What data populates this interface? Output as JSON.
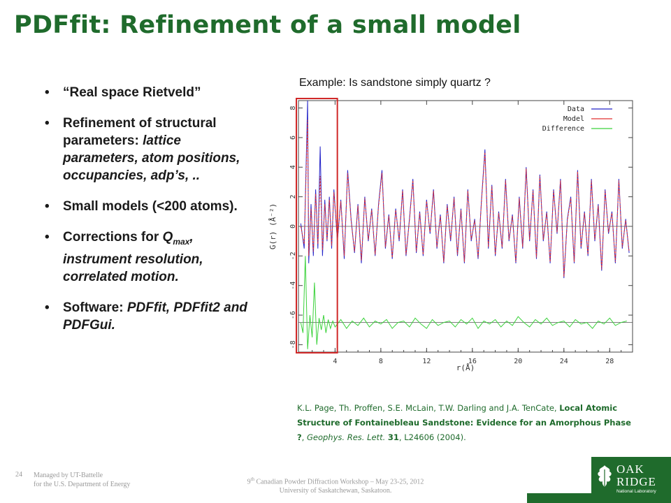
{
  "title": "PDFfit: Refinement of a small model",
  "bullets": [
    {
      "parts": [
        {
          "t": "“Real space Rietveld”",
          "i": false
        }
      ]
    },
    {
      "parts": [
        {
          "t": "Refinement of structural parameters: ",
          "i": false
        },
        {
          "t": "lattice parameters, atom positions, occupancies, adp’s, ..",
          "i": true
        }
      ]
    },
    {
      "parts": [
        {
          "t": "Small models (<200 atoms).",
          "i": false
        }
      ]
    },
    {
      "parts": [
        {
          "t": "Corrections for ",
          "i": false
        },
        {
          "t": "Q",
          "i": true
        },
        {
          "t": "max",
          "i": true,
          "sub": true
        },
        {
          "t": ", instrument resolution, correlated motion.",
          "i": true
        }
      ]
    },
    {
      "parts": [
        {
          "t": "Software: ",
          "i": false
        },
        {
          "t": "PDFfit, PDFfit2 and PDFGui.",
          "i": true
        }
      ]
    }
  ],
  "example_text": "Example: Is sandstone simply quartz ?",
  "reference": {
    "authors": "K.L. Page, Th. Proffen, S.E. McLain, T.W. Darling and J.A. TenCate, ",
    "paper_title": "Local Atomic Structure of Fontainebleau Sandstone: Evidence for an Amorphous Phase ?",
    "journal": "Geophys. Res. Lett.",
    "volume": "31",
    "pages_year": ", L24606 (2004)."
  },
  "footer": {
    "slide_number": "24",
    "managed_line1": "Managed by UT-Battelle",
    "managed_line2": "for the U.S. Department of Energy",
    "workshop_num": "9",
    "workshop_sup": "th",
    "workshop_line1": " Canadian Powder Diffraction Workshop – May 23-25, 2012",
    "workshop_line2": "University of Saskatchewan, Saskatoon."
  },
  "logo": {
    "line1": "OAK",
    "line2": "RIDGE",
    "line3": "National Laboratory"
  },
  "chart_data": {
    "type": "line",
    "xlabel": "r(Å)",
    "ylabel": "G(r) (Å⁻²)",
    "xlim": [
      0.8,
      30
    ],
    "ylim": [
      -8.5,
      8.5
    ],
    "xticks": [
      4,
      8,
      12,
      16,
      20,
      24,
      28
    ],
    "yticks": [
      -8,
      -6,
      -4,
      -2,
      0,
      2,
      4,
      6,
      8
    ],
    "legend_position": "top-right",
    "highlight_box_x": [
      0.8,
      4.2
    ],
    "series": [
      {
        "name": "Data",
        "color": "#2323c8",
        "x": [
          1.0,
          1.3,
          1.6,
          1.7,
          1.9,
          2.1,
          2.3,
          2.5,
          2.7,
          2.9,
          3.1,
          3.3,
          3.5,
          3.7,
          3.9,
          4.2,
          4.5,
          4.8,
          5.1,
          5.4,
          5.7,
          6.0,
          6.3,
          6.6,
          6.9,
          7.2,
          7.5,
          7.8,
          8.1,
          8.4,
          8.7,
          9.0,
          9.3,
          9.6,
          9.9,
          10.2,
          10.5,
          10.8,
          11.1,
          11.4,
          11.7,
          12.0,
          12.3,
          12.6,
          12.9,
          13.2,
          13.5,
          13.8,
          14.1,
          14.4,
          14.7,
          15.0,
          15.3,
          15.6,
          15.9,
          16.2,
          16.5,
          16.8,
          17.1,
          17.4,
          17.7,
          18.0,
          18.3,
          18.6,
          18.9,
          19.2,
          19.5,
          19.8,
          20.1,
          20.4,
          20.7,
          21.0,
          21.3,
          21.6,
          21.9,
          22.2,
          22.5,
          22.8,
          23.1,
          23.4,
          23.7,
          24.0,
          24.3,
          24.6,
          24.9,
          25.2,
          25.5,
          25.8,
          26.1,
          26.4,
          26.7,
          27.0,
          27.3,
          27.6,
          27.9,
          28.2,
          28.5,
          28.8,
          29.1,
          29.4,
          29.7
        ],
        "y": [
          0.2,
          -1.5,
          8.5,
          -2.5,
          1.5,
          -2.0,
          2.5,
          -1.5,
          5.4,
          -2.0,
          1.8,
          -1.0,
          2.0,
          -1.5,
          2.5,
          -1.0,
          1.8,
          -2.2,
          3.8,
          0.5,
          -1.8,
          1.5,
          -2.5,
          2.0,
          -1.0,
          1.2,
          -2.0,
          1.5,
          3.8,
          -1.5,
          0.8,
          -2.2,
          1.2,
          -1.0,
          2.5,
          -2.0,
          0.5,
          3.2,
          -1.8,
          1.0,
          -2.0,
          1.8,
          -0.5,
          2.5,
          -1.5,
          0.8,
          -2.5,
          1.5,
          -1.0,
          2.0,
          -2.0,
          1.2,
          -2.5,
          2.5,
          -1.0,
          0.5,
          -2.2,
          1.8,
          5.2,
          -1.5,
          2.8,
          -2.0,
          1.0,
          -1.5,
          3.2,
          -1.0,
          0.8,
          -2.5,
          2.0,
          -1.5,
          4.0,
          -1.0,
          2.5,
          -2.2,
          3.5,
          -1.0,
          1.0,
          -2.5,
          2.5,
          -0.5,
          3.2,
          -3.5,
          0.5,
          2.0,
          -2.5,
          3.8,
          -1.5,
          1.0,
          -2.0,
          3.2,
          -1.0,
          1.5,
          -3.0,
          2.5,
          -0.5,
          1.0,
          -2.5,
          3.2,
          -1.5,
          0.5,
          -1.8
        ]
      },
      {
        "name": "Model",
        "color": "#e03232",
        "x": [
          1.0,
          1.3,
          1.6,
          1.7,
          1.9,
          2.1,
          2.3,
          2.5,
          2.7,
          2.9,
          3.1,
          3.3,
          3.5,
          3.7,
          3.9,
          4.2,
          4.5,
          4.8,
          5.1,
          5.4,
          5.7,
          6.0,
          6.3,
          6.6,
          6.9,
          7.2,
          7.5,
          7.8,
          8.1,
          8.4,
          8.7,
          9.0,
          9.3,
          9.6,
          9.9,
          10.2,
          10.5,
          10.8,
          11.1,
          11.4,
          11.7,
          12.0,
          12.3,
          12.6,
          12.9,
          13.2,
          13.5,
          13.8,
          14.1,
          14.4,
          14.7,
          15.0,
          15.3,
          15.6,
          15.9,
          16.2,
          16.5,
          16.8,
          17.1,
          17.4,
          17.7,
          18.0,
          18.3,
          18.6,
          18.9,
          19.2,
          19.5,
          19.8,
          20.1,
          20.4,
          20.7,
          21.0,
          21.3,
          21.6,
          21.9,
          22.2,
          22.5,
          22.8,
          23.1,
          23.4,
          23.7,
          24.0,
          24.3,
          24.6,
          24.9,
          25.2,
          25.5,
          25.8,
          26.1,
          26.4,
          26.7,
          27.0,
          27.3,
          27.6,
          27.9,
          28.2,
          28.5,
          28.8,
          29.1,
          29.4,
          29.7
        ],
        "y": [
          0.0,
          -1.2,
          7.2,
          -2.0,
          1.2,
          -1.7,
          2.2,
          -1.2,
          3.4,
          -1.6,
          1.5,
          -0.9,
          1.8,
          -1.3,
          2.3,
          -0.9,
          1.7,
          -2.0,
          3.6,
          0.4,
          -1.7,
          1.4,
          -2.3,
          1.9,
          -0.9,
          1.1,
          -1.9,
          1.4,
          3.6,
          -1.4,
          0.7,
          -2.1,
          1.1,
          -0.9,
          2.4,
          -1.9,
          0.4,
          3.1,
          -1.7,
          0.9,
          -1.9,
          1.7,
          -0.4,
          2.4,
          -1.4,
          0.7,
          -2.4,
          1.4,
          -0.9,
          1.9,
          -1.9,
          1.1,
          -2.4,
          2.4,
          -0.9,
          0.4,
          -2.1,
          1.7,
          5.0,
          -1.4,
          2.7,
          -1.9,
          0.9,
          -1.4,
          3.1,
          -0.9,
          0.7,
          -2.4,
          1.9,
          -1.4,
          3.9,
          -0.9,
          2.4,
          -2.1,
          3.4,
          -0.9,
          0.9,
          -2.4,
          2.4,
          -0.4,
          3.1,
          -3.4,
          0.4,
          1.9,
          -2.4,
          3.7,
          -1.4,
          0.9,
          -1.9,
          3.1,
          -0.9,
          1.4,
          -2.9,
          2.4,
          -0.4,
          0.9,
          -2.4,
          3.1,
          -1.4,
          0.4,
          -1.7
        ]
      },
      {
        "name": "Difference",
        "color": "#3cd23c",
        "x": [
          1.0,
          1.2,
          1.4,
          1.6,
          1.8,
          2.0,
          2.2,
          2.4,
          2.6,
          2.8,
          3.0,
          3.2,
          3.4,
          3.6,
          3.8,
          4.0,
          4.5,
          5.0,
          5.5,
          6.0,
          6.5,
          7.0,
          7.5,
          8.0,
          8.5,
          9.0,
          9.5,
          10.0,
          10.5,
          11.0,
          11.5,
          12.0,
          12.5,
          13.0,
          13.5,
          14.0,
          14.5,
          15.0,
          15.5,
          16.0,
          16.5,
          17.0,
          17.5,
          18.0,
          18.5,
          19.0,
          19.5,
          20.0,
          20.5,
          21.0,
          21.5,
          22.0,
          22.5,
          23.0,
          23.5,
          24.0,
          24.5,
          25.0,
          25.5,
          26.0,
          26.5,
          27.0,
          27.5,
          28.0,
          28.5,
          29.0,
          29.5
        ],
        "y": [
          -6.5,
          -7.2,
          -2.0,
          -8.3,
          -6.0,
          -7.5,
          -3.8,
          -8.0,
          -6.2,
          -7.0,
          -6.0,
          -7.2,
          -6.3,
          -6.9,
          -6.4,
          -6.8,
          -6.3,
          -6.9,
          -6.4,
          -6.7,
          -6.2,
          -6.8,
          -6.4,
          -6.6,
          -6.3,
          -6.9,
          -6.5,
          -6.4,
          -6.8,
          -6.2,
          -6.6,
          -6.9,
          -6.3,
          -6.7,
          -6.5,
          -6.4,
          -6.8,
          -6.3,
          -6.6,
          -6.2,
          -6.9,
          -6.4,
          -6.6,
          -6.3,
          -6.8,
          -6.4,
          -6.7,
          -6.1,
          -6.5,
          -6.8,
          -6.3,
          -6.6,
          -6.2,
          -6.7,
          -6.5,
          -6.4,
          -6.8,
          -6.3,
          -6.6,
          -6.5,
          -6.9,
          -6.4,
          -6.6,
          -6.2,
          -6.7,
          -6.5,
          -6.4
        ]
      }
    ]
  }
}
